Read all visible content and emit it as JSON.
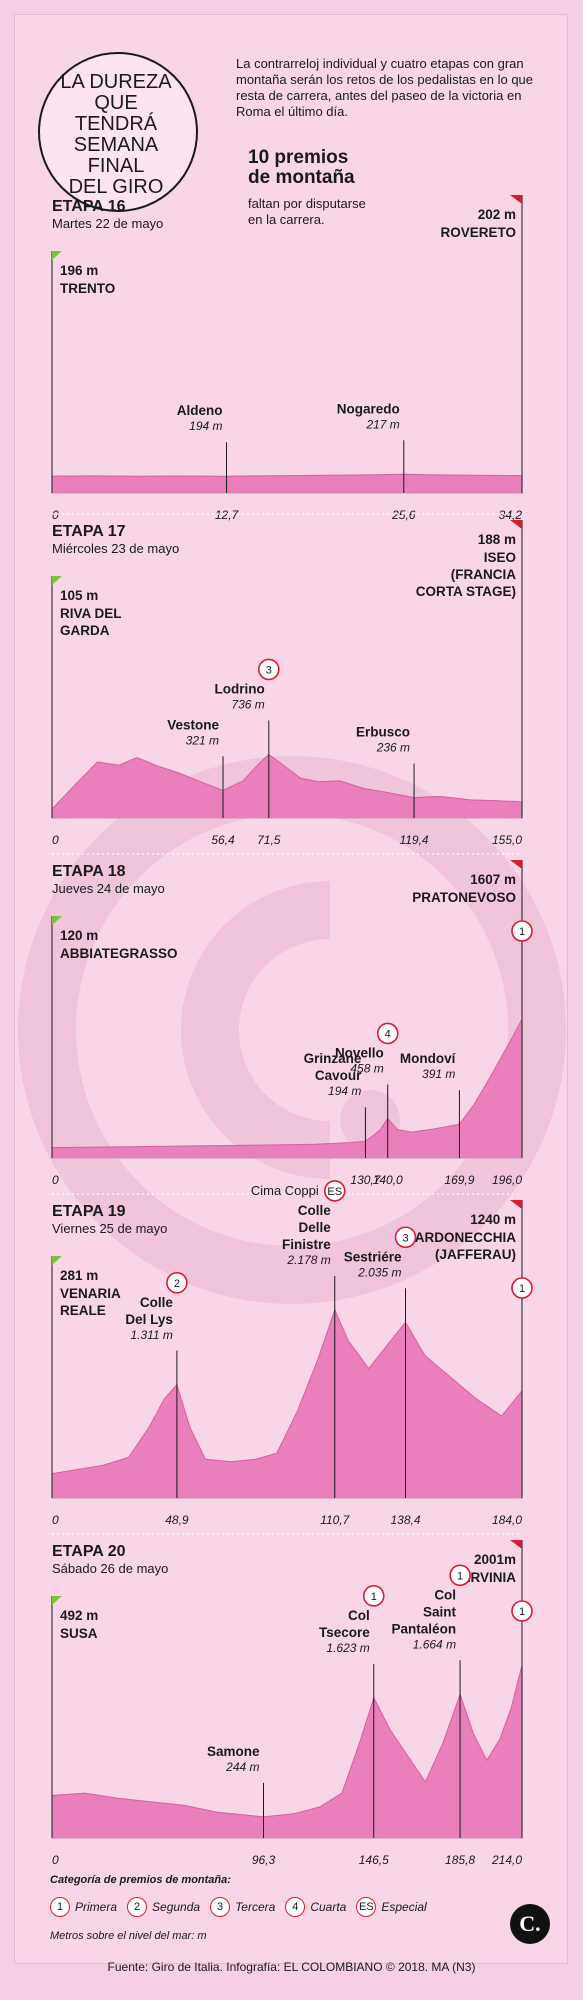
{
  "title": [
    "LA DUREZA",
    "QUE TENDRÁ",
    "SEMANA FINAL",
    "DEL GIRO"
  ],
  "intro": "La contrarreloj individual y cuatro etapas con gran montaña serán los retos de los pedalistas en lo que resta de carrera, antes del paseo de la victoria en Roma el último día.",
  "prizes_title": [
    "10 premios",
    "de montaña"
  ],
  "prizes_sub": [
    "faltan por disputarse",
    "en la carrera."
  ],
  "colors": {
    "profile": "#e97fbb",
    "profile_dark": "#d8609f",
    "badge": "#d91a33",
    "flag": "#d91a33",
    "start_flag": "#7ec23c"
  },
  "chart_data": [
    {
      "type": "area",
      "stage": "ETAPA 16",
      "date": "Martes 22 de mayo",
      "start": {
        "alt": "196 m",
        "name": [
          "TRENTO"
        ]
      },
      "finish": {
        "alt": "202 m",
        "name": [
          "ROVERETO"
        ]
      },
      "ticks": [
        "0",
        "12,7",
        "25,6",
        "34,2"
      ],
      "points": [
        {
          "km": 12.7,
          "label": "12,7",
          "name": [
            "Aldeno"
          ],
          "alt": "194 m",
          "cat": "",
          "value": 194
        },
        {
          "km": 25.6,
          "label": "25,6",
          "name": [
            "Nogaredo"
          ],
          "alt": "217 m",
          "cat": "",
          "value": 217
        }
      ],
      "x": [
        0,
        3,
        6,
        9,
        12.7,
        16,
        20,
        23,
        25.6,
        28,
        31,
        34.2
      ],
      "y": [
        196,
        198,
        194,
        197,
        194,
        200,
        205,
        210,
        217,
        210,
        205,
        202
      ],
      "xlim": [
        0,
        34.2
      ],
      "ylim": [
        0,
        2200
      ]
    },
    {
      "type": "area",
      "stage": "ETAPA 17",
      "date": "Miércoles 23 de mayo",
      "start": {
        "alt": "105 m",
        "name": [
          "RIVA DEL",
          "GARDA"
        ]
      },
      "finish": {
        "alt": "188 m",
        "name": [
          "ISEO",
          "(FRANCIA",
          "CORTA STAGE)"
        ]
      },
      "ticks": [
        "0",
        "56,4",
        "71,5",
        "119,4",
        "155,0"
      ],
      "points": [
        {
          "km": 56.4,
          "label": "56,4",
          "name": [
            "Vestone"
          ],
          "alt": "321 m",
          "cat": "",
          "value": 321
        },
        {
          "km": 71.5,
          "label": "71,5",
          "name": [
            "Lodrino"
          ],
          "alt": "736 m",
          "cat": "3",
          "value": 736
        },
        {
          "km": 119.4,
          "label": "119,4",
          "name": [
            "Erbusco"
          ],
          "alt": "236 m",
          "cat": "",
          "value": 236
        }
      ],
      "x": [
        0,
        8,
        15,
        22,
        28,
        35,
        42,
        49,
        56.4,
        63,
        68,
        71.5,
        76,
        82,
        88,
        95,
        103,
        110,
        119.4,
        128,
        138,
        147,
        155
      ],
      "y": [
        105,
        400,
        650,
        610,
        700,
        600,
        520,
        420,
        321,
        430,
        620,
        736,
        620,
        460,
        420,
        430,
        340,
        300,
        236,
        250,
        210,
        200,
        188
      ],
      "xlim": [
        0,
        155
      ],
      "ylim": [
        0,
        2200
      ]
    },
    {
      "type": "area",
      "stage": "ETAPA 18",
      "date": "Jueves 24 de mayo",
      "start": {
        "alt": "120 m",
        "name": [
          "ABBIATEGRASSO"
        ]
      },
      "finish": {
        "alt": "1607 m",
        "name": [
          "PRATONEVOSO"
        ]
      },
      "ticks": [
        "0",
        "130,7",
        "140,0",
        "169,9",
        "196,0"
      ],
      "points": [
        {
          "km": 130.7,
          "label": "130,7",
          "name": [
            "Grinzane",
            "Cavour"
          ],
          "alt": "194 m",
          "cat": "",
          "value": 194
        },
        {
          "km": 140.0,
          "label": "140,0",
          "name": [
            "Novello"
          ],
          "alt": "458 m",
          "cat": "4",
          "value": 458
        },
        {
          "km": 169.9,
          "label": "169,9",
          "name": [
            "Mondoví"
          ],
          "alt": "391 m",
          "cat": "",
          "value": 391
        }
      ],
      "finish_cat": "1",
      "x": [
        0,
        30,
        60,
        90,
        110,
        125,
        130.7,
        134,
        137,
        140,
        144,
        150,
        160,
        169.9,
        176,
        182,
        188,
        192,
        196
      ],
      "y": [
        120,
        130,
        140,
        150,
        160,
        180,
        194,
        260,
        330,
        458,
        330,
        300,
        340,
        391,
        620,
        900,
        1200,
        1400,
        1607
      ],
      "xlim": [
        0,
        196
      ],
      "ylim": [
        0,
        2200
      ]
    },
    {
      "type": "area",
      "stage": "ETAPA 19",
      "date": "Viernes 25 de mayo",
      "start": {
        "alt": "281 m",
        "name": [
          "VENARIA",
          "REALE"
        ]
      },
      "finish": {
        "alt": "1240 m",
        "name": [
          "BARDONECCHIA",
          "(JAFFERAU)"
        ]
      },
      "ticks": [
        "0",
        "48,9",
        "110,7",
        "138,4",
        "184,0"
      ],
      "points": [
        {
          "km": 48.9,
          "label": "48,9",
          "name": [
            "Colle",
            "Del Lys"
          ],
          "alt": "1.311 m",
          "cat": "2",
          "value": 1311
        },
        {
          "km": 110.7,
          "label": "110,7",
          "name": [
            "Colle",
            "Delle",
            "Finistre"
          ],
          "alt": "2.178 m",
          "cat": "ES",
          "value": 2178,
          "extra": "Cima Coppi"
        },
        {
          "km": 138.4,
          "label": "138,4",
          "name": [
            "Sestriére"
          ],
          "alt": "2.035 m",
          "cat": "3",
          "value": 2035
        }
      ],
      "finish_cat": "1",
      "x": [
        0,
        10,
        20,
        30,
        38,
        44,
        48.9,
        54,
        60,
        70,
        80,
        88,
        96,
        104,
        110.7,
        116,
        124,
        132,
        138.4,
        146,
        156,
        166,
        176,
        184
      ],
      "y": [
        281,
        330,
        380,
        470,
        820,
        1150,
        1311,
        820,
        450,
        420,
        450,
        520,
        1000,
        1600,
        2178,
        1820,
        1500,
        1800,
        2035,
        1650,
        1400,
        1150,
        950,
        1240
      ],
      "xlim": [
        0,
        184
      ],
      "ylim": [
        0,
        2200
      ]
    },
    {
      "type": "area",
      "stage": "ETAPA 20",
      "date": "Sábado 26 de mayo",
      "start": {
        "alt": "492 m",
        "name": [
          "SUSA"
        ]
      },
      "finish": {
        "alt": "2001m",
        "name": [
          "CERVINIA"
        ]
      },
      "ticks": [
        "0",
        "96,3",
        "146,5",
        "185,8",
        "214,0"
      ],
      "points": [
        {
          "km": 96.3,
          "label": "96,3",
          "name": [
            "Samone"
          ],
          "alt": "244 m",
          "cat": "",
          "value": 244
        },
        {
          "km": 146.5,
          "label": "146,5",
          "name": [
            "Col",
            "Tsecore"
          ],
          "alt": "1.623 m",
          "cat": "1",
          "value": 1623
        },
        {
          "km": 185.8,
          "label": "185,8",
          "name": [
            "Col",
            "Saint",
            "Pantaléon"
          ],
          "alt": "1.664 m",
          "cat": "1",
          "value": 1664
        }
      ],
      "finish_cat": "1",
      "x": [
        0,
        15,
        30,
        45,
        60,
        75,
        96.3,
        110,
        122,
        132,
        140,
        146.5,
        154,
        162,
        170,
        178,
        185.8,
        192,
        198,
        204,
        209,
        214
      ],
      "y": [
        492,
        520,
        460,
        420,
        380,
        300,
        244,
        280,
        360,
        520,
        1100,
        1623,
        1250,
        950,
        650,
        1100,
        1664,
        1200,
        900,
        1150,
        1500,
        2001
      ],
      "xlim": [
        0,
        214
      ],
      "ylim": [
        0,
        2200
      ]
    }
  ],
  "legend": {
    "title": "Categoría de premios de montaña:",
    "items": [
      {
        "badge": "1",
        "label": "Primera"
      },
      {
        "badge": "2",
        "label": "Segunda"
      },
      {
        "badge": "3",
        "label": "Tercera"
      },
      {
        "badge": "4",
        "label": "Cuarta"
      },
      {
        "badge": "ES",
        "label": "Especial"
      }
    ],
    "note": "Metros sobre el nivel del mar: m"
  },
  "logo": "C.",
  "source": "Fuente: Giro de Italia. Infografía: EL COLOMBIANO © 2018. MA (N3)"
}
